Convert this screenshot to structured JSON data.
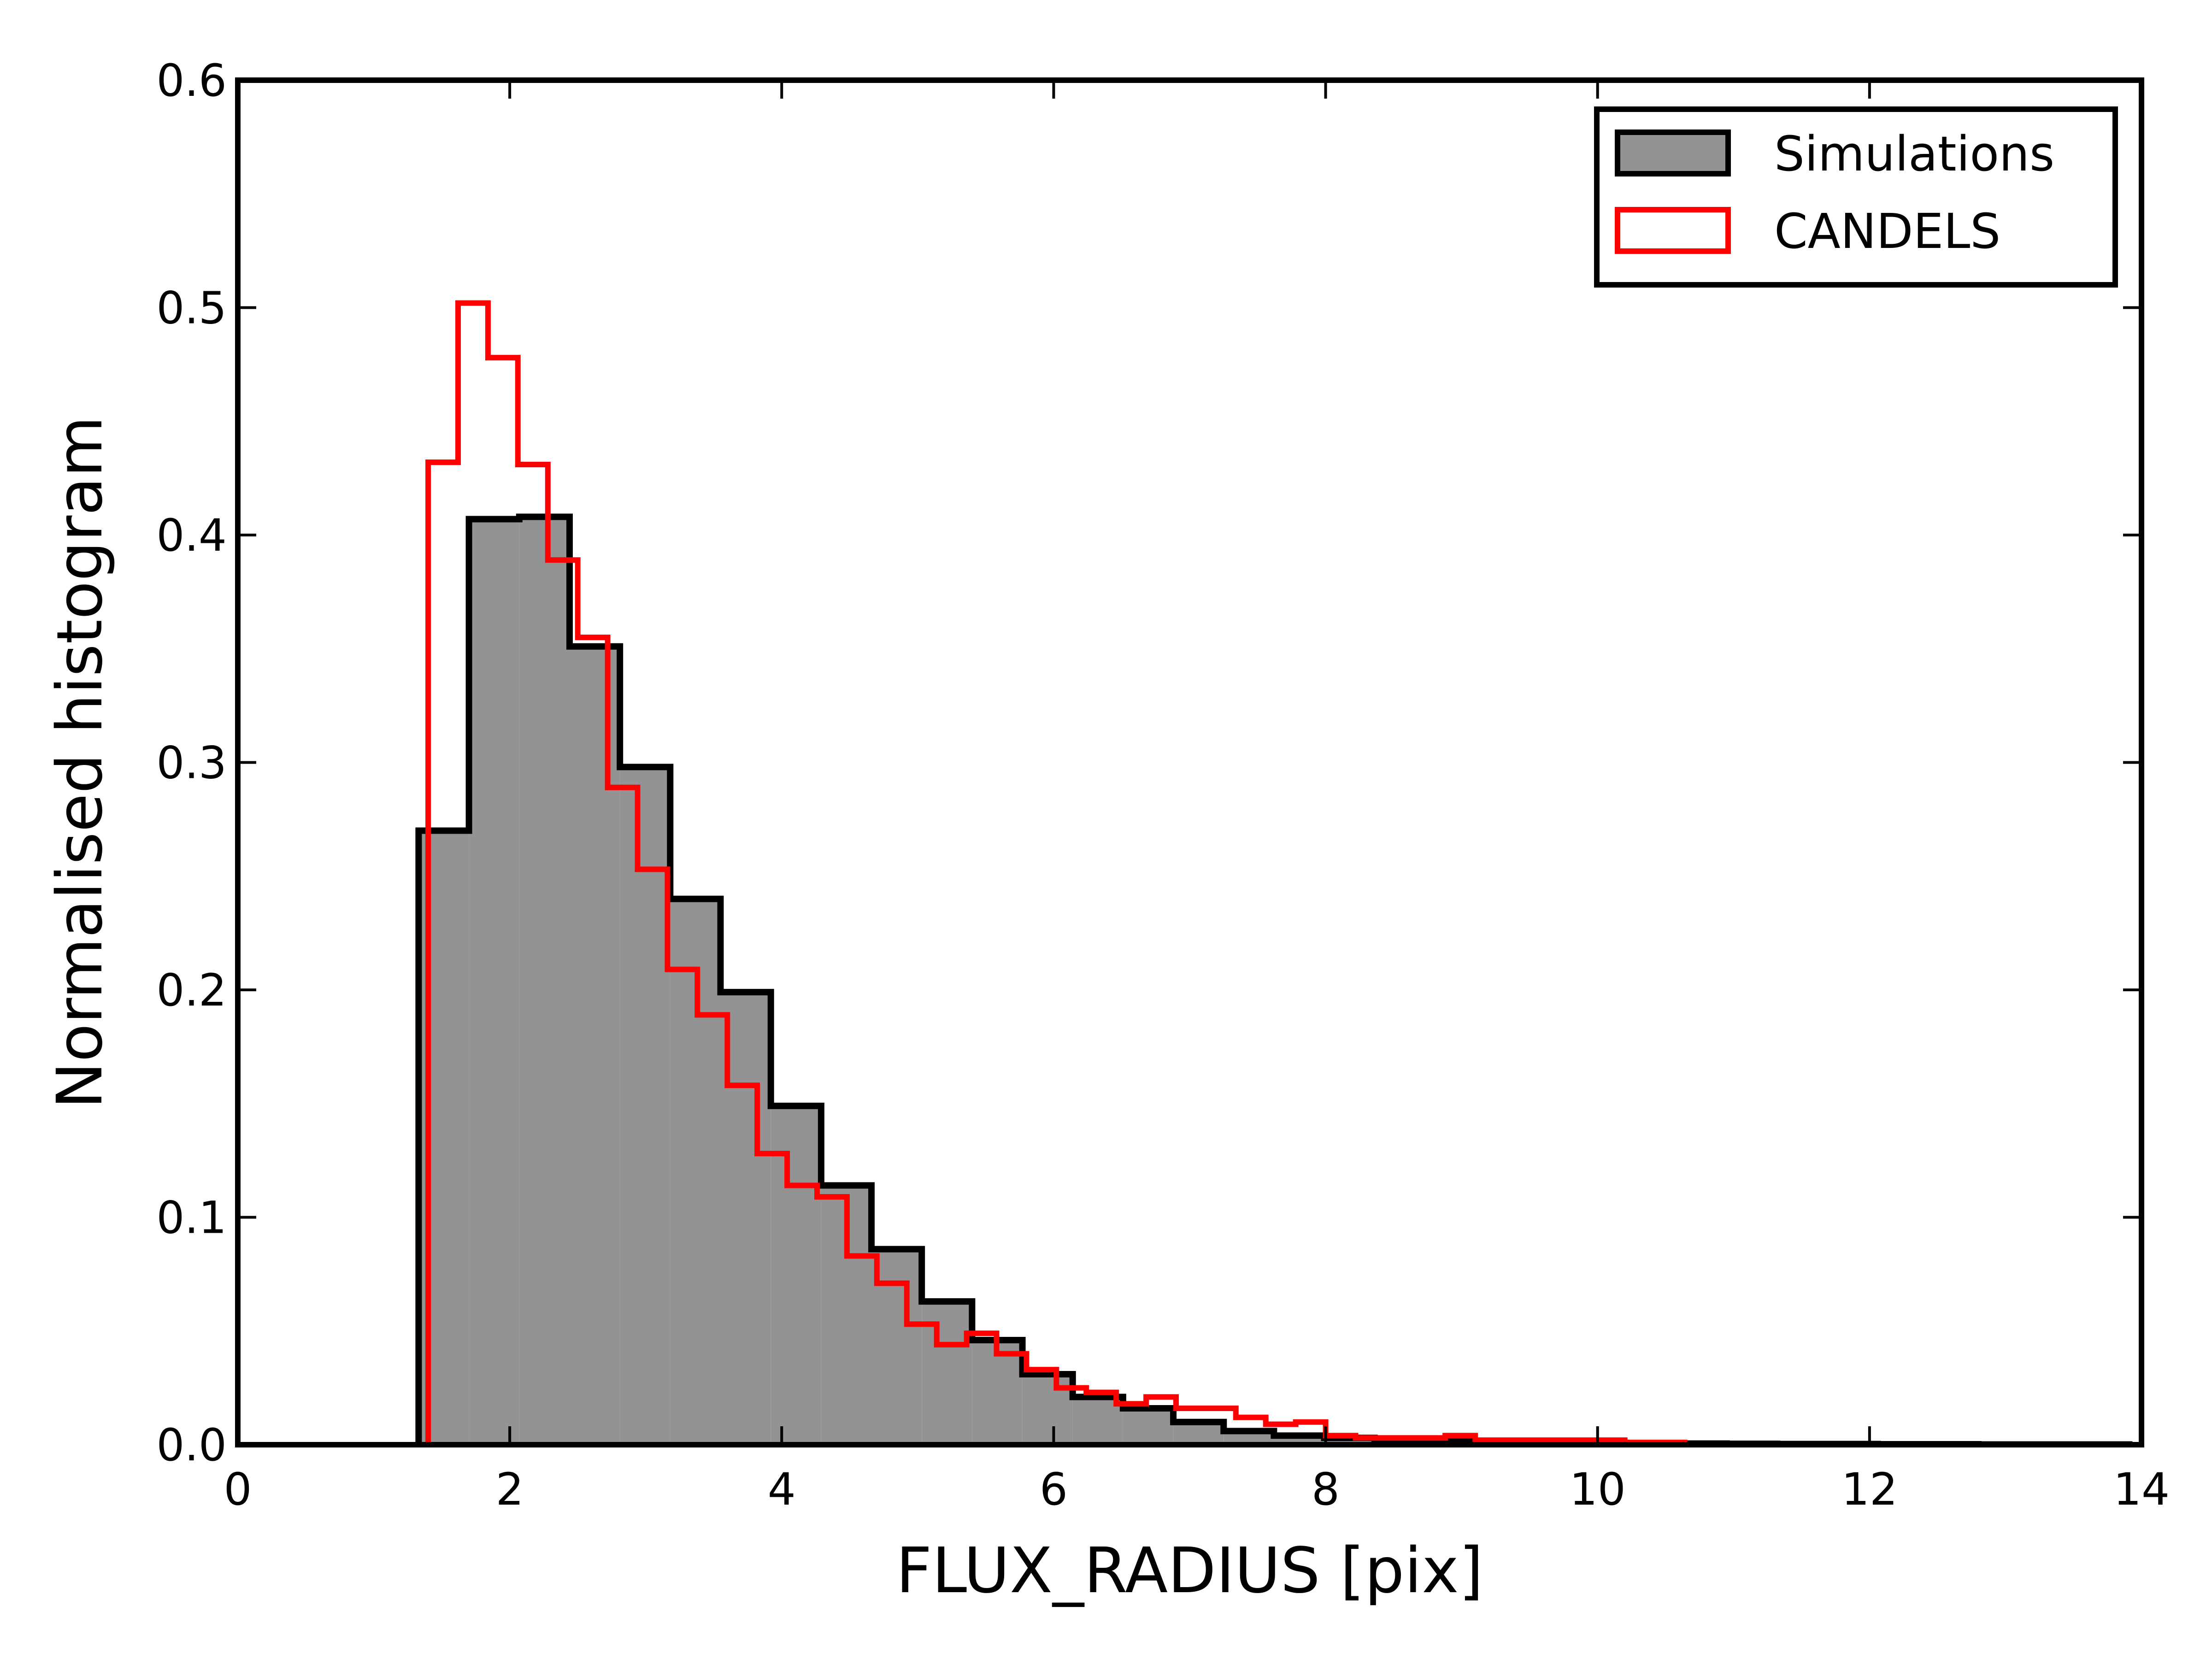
{
  "chart_data": {
    "type": "histogram",
    "xlabel": "FLUX_RADIUS [pix]",
    "ylabel": "Normalised histogram",
    "xlim": [
      0,
      14
    ],
    "ylim": [
      0,
      0.6
    ],
    "xticks": [
      0,
      2,
      4,
      6,
      8,
      10,
      12,
      14
    ],
    "yticks": [
      0.0,
      0.1,
      0.2,
      0.3,
      0.4,
      0.5,
      0.6
    ],
    "xtick_labels": [
      "0",
      "2",
      "4",
      "6",
      "8",
      "10",
      "12",
      "14"
    ],
    "ytick_labels": [
      "0.0",
      "0.1",
      "0.2",
      "0.3",
      "0.4",
      "0.5",
      "0.6"
    ],
    "grid": false,
    "legend_position": "top-right",
    "series": [
      {
        "name": "Simulations",
        "style": "filled-step",
        "fill": "#939393",
        "edge": "#000000",
        "bin_edges": [
          1.33,
          1.7,
          2.07,
          2.44,
          2.81,
          3.18,
          3.55,
          3.92,
          4.29,
          4.66,
          5.03,
          5.4,
          5.77,
          6.14,
          6.51,
          6.88,
          7.25,
          7.62,
          7.99,
          8.36,
          8.73,
          9.1,
          9.47,
          9.84,
          10.21,
          10.58,
          10.95,
          11.32,
          11.69,
          12.06,
          12.43,
          12.8,
          13.17,
          13.54,
          13.91
        ],
        "values": [
          0.27,
          0.407,
          0.408,
          0.351,
          0.298,
          0.24,
          0.199,
          0.149,
          0.114,
          0.086,
          0.063,
          0.046,
          0.031,
          0.021,
          0.016,
          0.01,
          0.006,
          0.004,
          0.003,
          0.002,
          0.0015,
          0.001,
          0.001,
          0.0008,
          0.0006,
          0.0005,
          0.0004,
          0.0003,
          0.0003,
          0.0002,
          0.0002,
          0.0001,
          0.0001,
          0.0001
        ]
      },
      {
        "name": "CANDELS",
        "style": "step",
        "edge": "#ff0000",
        "bin_edges": [
          1.4,
          1.62,
          1.84,
          2.06,
          2.28,
          2.5,
          2.72,
          2.94,
          3.16,
          3.38,
          3.6,
          3.82,
          4.04,
          4.26,
          4.48,
          4.7,
          4.92,
          5.14,
          5.36,
          5.58,
          5.8,
          6.02,
          6.24,
          6.46,
          6.68,
          6.9,
          7.12,
          7.34,
          7.56,
          7.78,
          8.0,
          8.22,
          8.44,
          8.66,
          8.88,
          9.1,
          9.32,
          9.54,
          9.76,
          9.98,
          10.2,
          10.42,
          10.64
        ],
        "values": [
          0.432,
          0.502,
          0.478,
          0.431,
          0.389,
          0.355,
          0.289,
          0.253,
          0.209,
          0.189,
          0.158,
          0.128,
          0.114,
          0.109,
          0.083,
          0.071,
          0.053,
          0.044,
          0.049,
          0.04,
          0.033,
          0.025,
          0.023,
          0.018,
          0.021,
          0.016,
          0.016,
          0.012,
          0.009,
          0.01,
          0.004,
          0.003,
          0.003,
          0.003,
          0.004,
          0.002,
          0.002,
          0.002,
          0.002,
          0.002,
          0.001,
          0.001
        ]
      }
    ]
  }
}
